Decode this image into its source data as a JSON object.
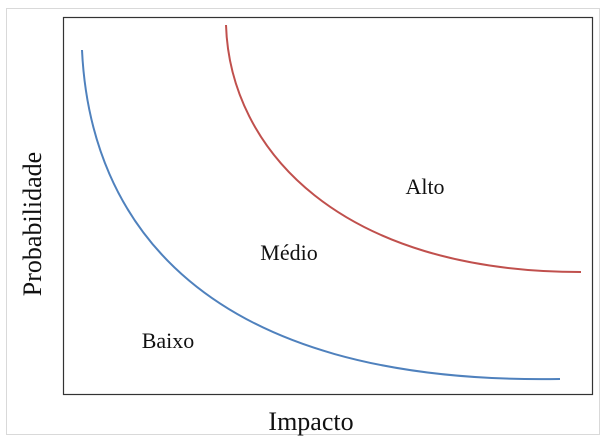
{
  "diagram": {
    "regions": {
      "low": "Baixo",
      "medium": "Médio",
      "high": "Alto"
    },
    "axes": {
      "x": "Impacto",
      "y": "Probabilidade"
    },
    "colors": {
      "low_curve": "#4f81bd",
      "high_curve": "#c0504d",
      "frame": "#333333"
    }
  }
}
